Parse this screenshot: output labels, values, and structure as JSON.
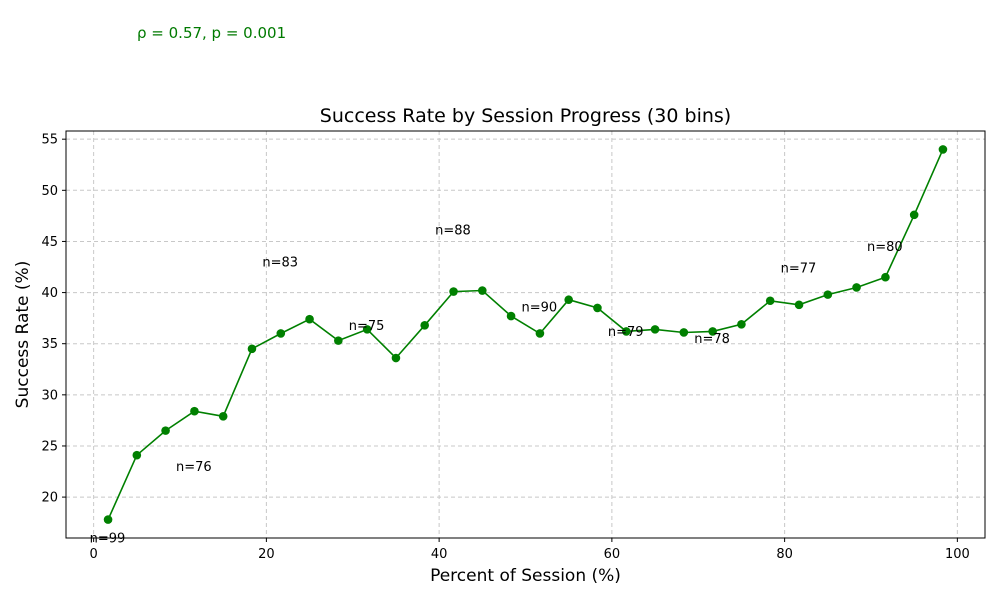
{
  "stat_annotation": "ρ = 0.57, p = 0.001",
  "colors": {
    "series": "#008000",
    "stat_text": "#007a00",
    "grid": "#c8c8c8"
  },
  "chart_data": {
    "type": "line",
    "title": "Success Rate by Session Progress (30 bins)",
    "xlabel": "Percent of Session (%)",
    "ylabel": "Success Rate (%)",
    "xlim": [
      -3.2,
      103.2
    ],
    "ylim": [
      16,
      55.8
    ],
    "xticks": [
      0,
      20,
      40,
      60,
      80,
      100
    ],
    "yticks": [
      20,
      25,
      30,
      35,
      40,
      45,
      50,
      55
    ],
    "grid": true,
    "x": [
      1.67,
      5.0,
      8.33,
      11.67,
      15.0,
      18.33,
      21.67,
      25.0,
      28.33,
      31.67,
      35.0,
      38.33,
      41.67,
      45.0,
      48.33,
      51.67,
      55.0,
      58.33,
      61.67,
      65.0,
      68.33,
      71.67,
      75.0,
      78.33,
      81.67,
      85.0,
      88.33,
      91.67,
      95.0,
      98.33
    ],
    "series": [
      {
        "values": [
          17.8,
          24.1,
          26.5,
          28.4,
          27.9,
          34.5,
          36.0,
          37.4,
          35.3,
          36.4,
          33.6,
          36.8,
          40.1,
          40.2,
          37.7,
          36.0,
          39.3,
          38.5,
          36.2,
          36.4,
          36.1,
          36.2,
          36.9,
          39.2,
          38.8,
          39.8,
          40.5,
          41.5,
          47.6,
          54.0
        ]
      }
    ],
    "annotations": [
      {
        "text": "n=99",
        "x": 0,
        "y": 16.0
      },
      {
        "text": "n=76",
        "x": 10,
        "y": 23.0
      },
      {
        "text": "n=83",
        "x": 20,
        "y": 43.0
      },
      {
        "text": "n=75",
        "x": 30,
        "y": 36.8
      },
      {
        "text": "n=88",
        "x": 40,
        "y": 46.1
      },
      {
        "text": "n=90",
        "x": 50,
        "y": 38.6
      },
      {
        "text": "n=79",
        "x": 60,
        "y": 36.2
      },
      {
        "text": "n=78",
        "x": 70,
        "y": 35.5
      },
      {
        "text": "n=77",
        "x": 80,
        "y": 42.4
      },
      {
        "text": "n=80",
        "x": 90,
        "y": 44.5
      }
    ]
  }
}
